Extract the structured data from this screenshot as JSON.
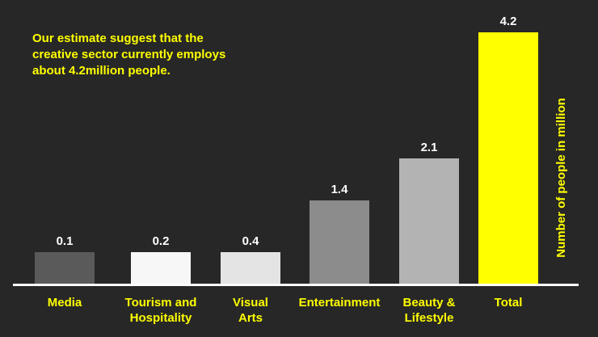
{
  "chart_data": {
    "type": "bar",
    "title": "",
    "annotation": "Our estimate suggest that the creative sector currently employs about 4.2million people.",
    "categories": [
      "Media",
      "Tourism and Hospitality",
      "Visual Arts",
      "Entertainment",
      "Beauty & Lifestyle",
      "Total"
    ],
    "category_lines": [
      [
        "Media"
      ],
      [
        "Tourism and",
        "Hospitality"
      ],
      [
        "Visual",
        "Arts"
      ],
      [
        "Entertainment"
      ],
      [
        "Beauty &",
        "Lifestyle"
      ],
      [
        "Total"
      ]
    ],
    "values": [
      0.1,
      0.2,
      0.4,
      1.4,
      2.1,
      4.2
    ],
    "value_labels": [
      "0.1",
      "0.2",
      "0.4",
      "1.4",
      "2.1",
      "4.2"
    ],
    "bar_colors": [
      "#5a5a5a",
      "#f7f7f7",
      "#e4e4e4",
      "#8c8c8c",
      "#b3b3b3",
      "#ffff00"
    ],
    "xlabel": "",
    "ylabel": "Number of people in million",
    "ylim": [
      0,
      4.2
    ],
    "grid": false,
    "legend": "none"
  }
}
